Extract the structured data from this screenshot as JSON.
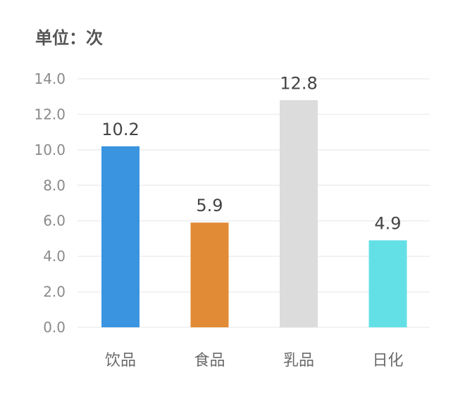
{
  "chart_data": {
    "type": "bar",
    "unit_label": "单位：次",
    "categories": [
      "饮品",
      "食品",
      "乳品",
      "日化"
    ],
    "values": [
      10.2,
      5.9,
      12.8,
      4.9
    ],
    "value_labels": [
      "10.2",
      "5.9",
      "12.8",
      "4.9"
    ],
    "colors": [
      "#3a94e0",
      "#e28b36",
      "#dcdcdc",
      "#63e0e6"
    ],
    "ylim": [
      0,
      14
    ],
    "yticks": [
      "0.0",
      "2.0",
      "4.0",
      "6.0",
      "8.0",
      "10.0",
      "12.0",
      "14.0"
    ],
    "grid": true,
    "xlabel": "",
    "ylabel": "",
    "title": ""
  }
}
